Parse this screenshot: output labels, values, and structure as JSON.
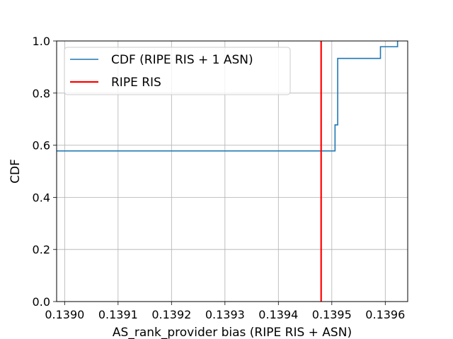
{
  "chart_data": {
    "type": "line",
    "title": "",
    "xlabel": "AS_rank_provider bias (RIPE RIS + ASN)",
    "ylabel": "CDF",
    "xlim": [
      0.138985,
      0.139642
    ],
    "ylim": [
      0.0,
      1.0
    ],
    "x_ticks": [
      0.139,
      0.1391,
      0.1392,
      0.1393,
      0.1394,
      0.1395,
      0.1396
    ],
    "x_tick_labels": [
      "0.1390",
      "0.1391",
      "0.1392",
      "0.1393",
      "0.1394",
      "0.1395",
      "0.1396"
    ],
    "y_ticks": [
      0.0,
      0.2,
      0.4,
      0.6,
      0.8,
      1.0
    ],
    "y_tick_labels": [
      "0.0",
      "0.2",
      "0.4",
      "0.6",
      "0.8",
      "1.0"
    ],
    "grid": true,
    "legend_position": "top-left",
    "series": [
      {
        "name": "CDF (RIPE RIS + 1 ASN)",
        "color": "#1f77b4",
        "style": "step",
        "x": [
          0.138985,
          0.139506,
          0.139506,
          0.139511,
          0.139511,
          0.139591,
          0.139591,
          0.139623,
          0.139623
        ],
        "y": [
          0.578,
          0.578,
          0.678,
          0.678,
          0.933,
          0.933,
          0.978,
          0.978,
          1.0
        ]
      },
      {
        "name": "RIPE RIS",
        "color": "#ff0000",
        "style": "vline",
        "x": [
          0.13948,
          0.13948
        ],
        "y": [
          0.0,
          1.0
        ]
      }
    ]
  }
}
